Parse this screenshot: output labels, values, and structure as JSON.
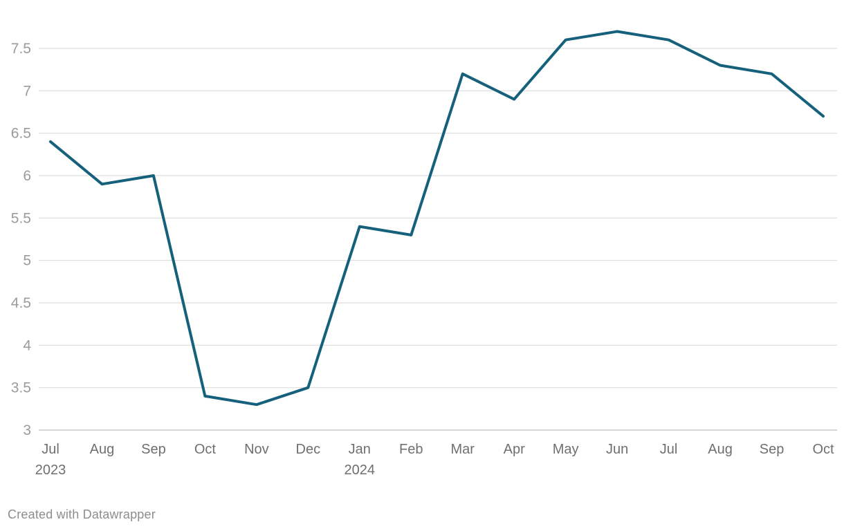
{
  "chart_data": {
    "type": "line",
    "title": "",
    "xlabel": "",
    "ylabel": "",
    "x_labels": [
      {
        "month": "Jul",
        "year": "2023"
      },
      {
        "month": "Aug",
        "year": ""
      },
      {
        "month": "Sep",
        "year": ""
      },
      {
        "month": "Oct",
        "year": ""
      },
      {
        "month": "Nov",
        "year": ""
      },
      {
        "month": "Dec",
        "year": ""
      },
      {
        "month": "Jan",
        "year": "2024"
      },
      {
        "month": "Feb",
        "year": ""
      },
      {
        "month": "Mar",
        "year": ""
      },
      {
        "month": "Apr",
        "year": ""
      },
      {
        "month": "May",
        "year": ""
      },
      {
        "month": "Jun",
        "year": ""
      },
      {
        "month": "Jul",
        "year": ""
      },
      {
        "month": "Aug",
        "year": ""
      },
      {
        "month": "Sep",
        "year": ""
      },
      {
        "month": "Oct",
        "year": ""
      }
    ],
    "values": [
      6.4,
      5.9,
      6.0,
      3.4,
      3.3,
      3.5,
      5.4,
      5.3,
      7.2,
      6.9,
      7.6,
      7.7,
      7.6,
      7.3,
      7.2,
      6.7
    ],
    "y_tick_labels": [
      "3",
      "3.5",
      "4",
      "4.5",
      "5",
      "5.5",
      "6",
      "6.5",
      "7",
      "7.5"
    ],
    "ylim": [
      3,
      7.5
    ],
    "grid": true,
    "legend": "none",
    "line_color": "#15607a",
    "grid_color": "#dedede",
    "baseline_color": "#c8c8c8"
  },
  "footer": {
    "attribution": "Created with Datawrapper"
  }
}
